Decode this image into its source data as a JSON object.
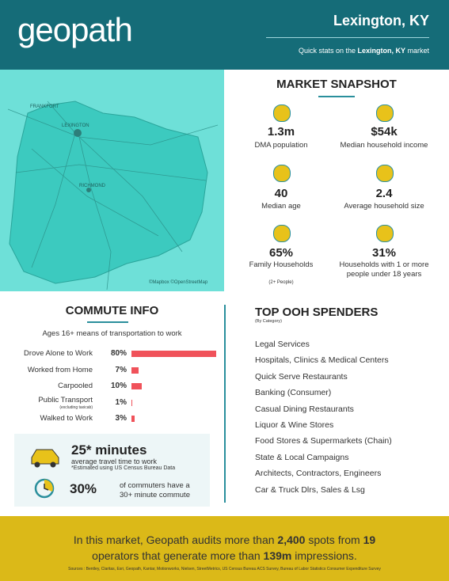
{
  "header": {
    "logo": "geopath",
    "title": "Lexington, KY",
    "subtitle": [
      "Quick stats on the ",
      "Lexington, KY",
      " market"
    ]
  },
  "map": {
    "labels": [
      "FRANKFORT",
      "LEXINGTON",
      "RICHMOND"
    ],
    "credit": "©Mapbox ©OpenStreetMap"
  },
  "snapshot": {
    "title": "MARKET SNAPSHOT",
    "items": [
      {
        "value": "1.3m",
        "label": "DMA population"
      },
      {
        "value": "$54k",
        "label": "Median household income"
      },
      {
        "value": 40,
        "label": "Median age"
      },
      {
        "value": 2.4,
        "label": "Average household size"
      },
      {
        "value": "65%",
        "label": "Family Households",
        "note": "(2+ People)"
      },
      {
        "value": "31%",
        "label": "Households with 1 or more people under 18 years"
      }
    ]
  },
  "commute": {
    "title": "COMMUTE INFO",
    "subtitle": "Ages 16+ means of transportation to work",
    "rows": [
      {
        "label": "Drove Alone to Work",
        "value": 80,
        "value_label": "80%"
      },
      {
        "label": "Worked from Home",
        "value": 7,
        "value_label": "7%"
      },
      {
        "label": "Carpooled",
        "value": 10,
        "value_label": "10%"
      },
      {
        "label": "Public Transport",
        "note": "(excluding taxicab)",
        "value": 1,
        "value_label": "1%"
      },
      {
        "label": "Walked to Work",
        "value": 3,
        "value_label": "3%"
      }
    ],
    "travel": {
      "value": "25* minutes",
      "label": "average travel time to work",
      "note": "*Estimated using US Census Bureau Data"
    },
    "long": {
      "value": "30%",
      "label": [
        "of commuters have a",
        "30+ minute commute"
      ]
    }
  },
  "spenders": {
    "title": "TOP OOH SPENDERS",
    "subtitle": "(By Category)",
    "items": [
      "Legal Services",
      "Hospitals, Clinics & Medical Centers",
      "Quick Serve Restaurants",
      "Banking (Consumer)",
      "Casual Dining Restaurants",
      "Liquor & Wine Stores",
      "Food Stores & Supermarkets (Chain)",
      "State & Local Campaigns",
      "Architects, Contractors, Engineers",
      "Car & Truck Dlrs, Sales & Lsg"
    ]
  },
  "footer": {
    "text": [
      "In this market, Geopath audits more than ",
      "2,400",
      " spots from ",
      "19",
      " operators that generate more than ",
      "139m",
      " impressions."
    ],
    "sources": "Sources : Bentley, Claritas, Esri, Geopath, Kantar, Motionworks, Nielsen, StreetMetrics, US Census Bureau ACS Survey, Bureau of Labor Statistics Consumer Expenditure Survey"
  }
}
